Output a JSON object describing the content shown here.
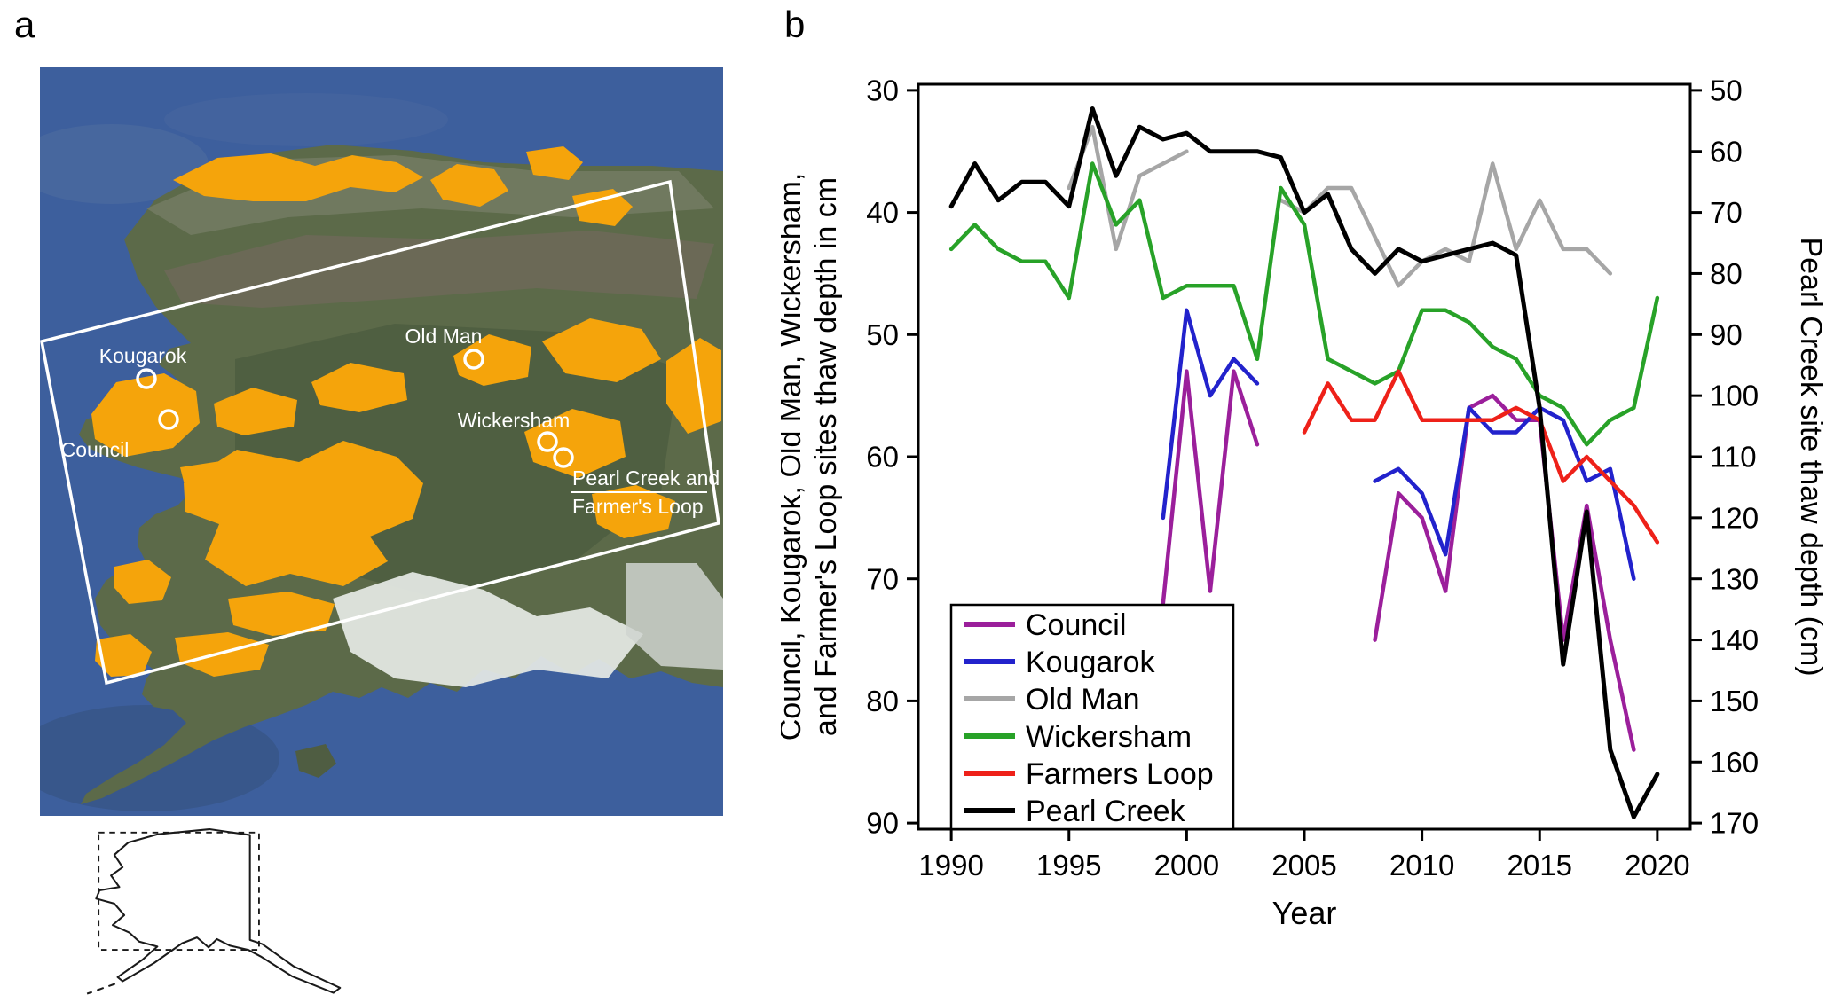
{
  "figure": {
    "panel_a_label": "a",
    "panel_b_label": "b"
  },
  "map": {
    "overlay_color": "#f5a40b",
    "region_outline_color": "#ffffff",
    "sites": [
      {
        "label": "Kougarok"
      },
      {
        "label": "Council"
      },
      {
        "label": "Old Man"
      },
      {
        "label": "Wickersham"
      },
      {
        "label": "Pearl Creek and",
        "label2": "Farmer's Loop"
      }
    ]
  },
  "chart_data": {
    "type": "line",
    "xlabel": "Year",
    "ylabel_left_lines": [
      "Council, Kougarok, Old Man, Wickersham,",
      "and Farmer's Loop sites thaw depth in cm"
    ],
    "ylabel_right": "Pearl Creek site thaw depth (cm)",
    "x": [
      1990,
      1991,
      1992,
      1993,
      1994,
      1995,
      1996,
      1997,
      1998,
      1999,
      2000,
      2001,
      2002,
      2003,
      2004,
      2005,
      2006,
      2007,
      2008,
      2009,
      2010,
      2011,
      2012,
      2013,
      2014,
      2015,
      2016,
      2017,
      2018,
      2019,
      2020
    ],
    "x_ticks": [
      1990,
      1995,
      2000,
      2005,
      2010,
      2015,
      2020
    ],
    "y_left": {
      "min": 30,
      "max": 90,
      "ticks": [
        30,
        40,
        50,
        60,
        70,
        80,
        90
      ],
      "inverted": true
    },
    "y_right": {
      "min": 50,
      "max": 170,
      "ticks": [
        50,
        60,
        70,
        80,
        90,
        100,
        110,
        120,
        130,
        140,
        150,
        160,
        170
      ],
      "inverted": true
    },
    "grid": false,
    "series": [
      {
        "name": "Council",
        "color": "#9b1f9b",
        "axis": "left",
        "values": [
          null,
          null,
          null,
          null,
          null,
          null,
          null,
          null,
          null,
          72,
          53,
          71,
          53,
          59,
          null,
          null,
          null,
          null,
          75,
          63,
          65,
          71,
          56,
          55,
          57,
          57,
          75,
          64,
          75,
          84,
          null
        ]
      },
      {
        "name": "Kougarok",
        "color": "#2222cc",
        "axis": "left",
        "values": [
          null,
          null,
          null,
          null,
          null,
          null,
          null,
          null,
          null,
          65,
          48,
          55,
          52,
          54,
          null,
          null,
          null,
          null,
          62,
          61,
          63,
          68,
          56,
          58,
          58,
          56,
          57,
          62,
          61,
          70,
          null
        ]
      },
      {
        "name": "Old Man",
        "color": "#a6a6a6",
        "axis": "left",
        "values": [
          null,
          null,
          null,
          null,
          null,
          38,
          33,
          43,
          37,
          36,
          35,
          null,
          null,
          null,
          39,
          40,
          38,
          38,
          42,
          46,
          44,
          43,
          44,
          36,
          43,
          39,
          43,
          43,
          45,
          null,
          null
        ]
      },
      {
        "name": "Wickersham",
        "color": "#28a228",
        "axis": "left",
        "values": [
          43,
          41,
          43,
          44,
          44,
          47,
          36,
          41,
          39,
          47,
          46,
          46,
          46,
          52,
          38,
          41,
          52,
          53,
          54,
          53,
          48,
          48,
          49,
          51,
          52,
          55,
          56,
          59,
          57,
          56,
          47
        ]
      },
      {
        "name": "Farmers Loop",
        "color": "#ee2119",
        "axis": "left",
        "values": [
          null,
          null,
          null,
          null,
          null,
          null,
          null,
          null,
          null,
          null,
          null,
          null,
          null,
          null,
          null,
          58,
          54,
          57,
          57,
          53,
          57,
          57,
          57,
          57,
          56,
          57,
          62,
          60,
          62,
          64,
          67
        ]
      },
      {
        "name": "Pearl Creek",
        "color": "#000000",
        "axis": "right",
        "values": [
          69,
          62,
          68,
          65,
          65,
          69,
          53,
          64,
          56,
          58,
          57,
          60,
          60,
          60,
          61,
          70,
          67,
          76,
          80,
          76,
          78,
          77,
          76,
          75,
          77,
          102,
          144,
          119,
          158,
          169,
          162
        ]
      }
    ],
    "legend": {
      "position": "lower-left-inside",
      "entries": [
        "Council",
        "Kougarok",
        "Old Man",
        "Wickersham",
        "Farmers Loop",
        "Pearl Creek"
      ]
    }
  }
}
